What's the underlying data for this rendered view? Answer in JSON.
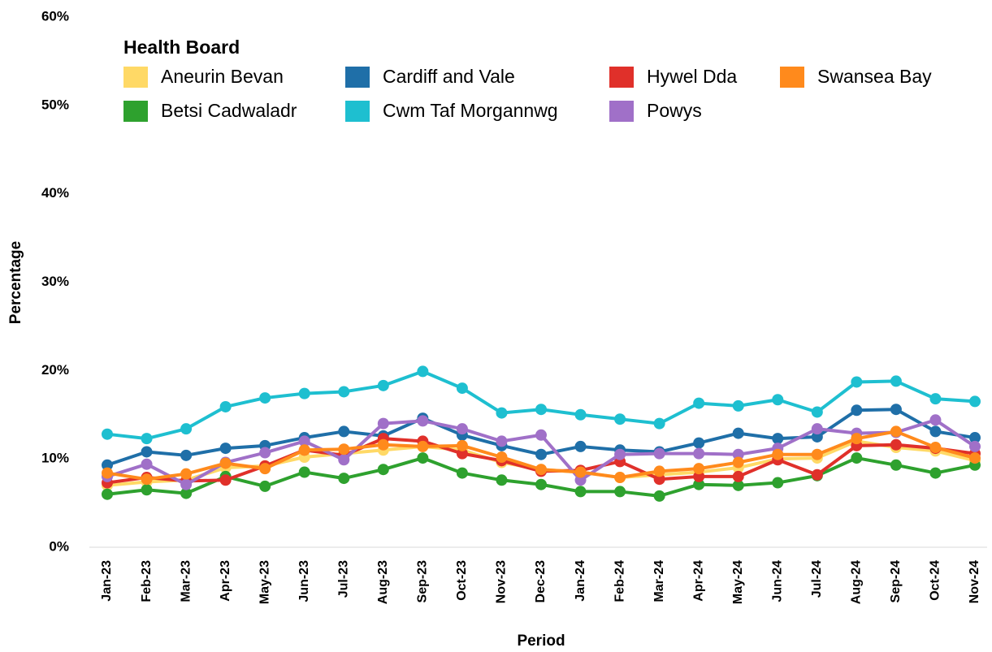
{
  "chart_data": {
    "type": "line",
    "x_label": "Period",
    "y_label": "Percentage",
    "legend_title": "Health Board",
    "legend": "top-left",
    "categories": [
      "Jan-23",
      "Feb-23",
      "Mar-23",
      "Apr-23",
      "May-23",
      "Jun-23",
      "Jul-23",
      "Aug-23",
      "Sep-23",
      "Oct-23",
      "Nov-23",
      "Dec-23",
      "Jan-24",
      "Feb-24",
      "Mar-24",
      "Apr-24",
      "May-24",
      "Jun-24",
      "Jul-24",
      "Aug-24",
      "Sep-24",
      "Oct-24",
      "Nov-24"
    ],
    "ylim": [
      0,
      60
    ],
    "yticks": [
      {
        "value": 0,
        "label": "0%"
      },
      {
        "value": 10,
        "label": "10%"
      },
      {
        "value": 20,
        "label": "20%"
      },
      {
        "value": 30,
        "label": "30%"
      },
      {
        "value": 40,
        "label": "40%"
      },
      {
        "value": 50,
        "label": "50%"
      },
      {
        "value": 60,
        "label": "60%"
      }
    ],
    "series": [
      {
        "name": "Aneurin Bevan",
        "color": "#ffd966",
        "values": [
          7.0,
          7.4,
          7.6,
          9.0,
          9.2,
          10.2,
          10.6,
          11.0,
          11.4,
          11.0,
          9.6,
          8.8,
          8.5,
          7.9,
          8.2,
          8.5,
          9.0,
          10.0,
          10.1,
          12.0,
          11.3,
          10.9,
          9.8
        ]
      },
      {
        "name": "Betsi Cadwaladr",
        "color": "#2ea12e",
        "values": [
          6.0,
          6.5,
          6.1,
          8.0,
          6.9,
          8.5,
          7.8,
          8.8,
          10.1,
          8.4,
          7.6,
          7.1,
          6.3,
          6.3,
          5.8,
          7.1,
          7.0,
          7.3,
          8.1,
          10.1,
          9.3,
          8.4,
          9.3
        ]
      },
      {
        "name": "Cardiff and Vale",
        "color": "#1f6fa8",
        "values": [
          9.3,
          10.8,
          10.4,
          11.2,
          11.5,
          12.4,
          13.1,
          12.6,
          14.6,
          12.7,
          11.5,
          10.5,
          11.4,
          11.0,
          10.8,
          11.8,
          12.9,
          12.3,
          12.5,
          15.5,
          15.6,
          13.1,
          12.4
        ]
      },
      {
        "name": "Cwm Taf Morgannwg",
        "color": "#1ebfd0",
        "values": [
          12.8,
          12.3,
          13.4,
          15.9,
          16.9,
          17.4,
          17.6,
          18.3,
          19.9,
          18.0,
          15.2,
          15.6,
          15.0,
          14.5,
          14.0,
          16.3,
          16.0,
          16.7,
          15.3,
          18.7,
          18.8,
          16.8,
          16.5
        ]
      },
      {
        "name": "Hywel Dda",
        "color": "#e0302a",
        "values": [
          7.3,
          7.9,
          7.5,
          7.6,
          9.2,
          11.0,
          10.4,
          12.3,
          12.0,
          10.6,
          9.8,
          8.6,
          8.7,
          9.7,
          7.7,
          8.0,
          8.0,
          9.9,
          8.2,
          11.5,
          11.6,
          11.2,
          10.6
        ]
      },
      {
        "name": "Powys",
        "color": "#a070c8",
        "values": [
          8.0,
          9.4,
          7.1,
          9.6,
          10.7,
          12.0,
          9.9,
          14.0,
          14.3,
          13.4,
          12.0,
          12.7,
          7.6,
          10.5,
          10.6,
          10.6,
          10.5,
          11.2,
          13.4,
          12.9,
          13.0,
          14.4,
          11.4
        ]
      },
      {
        "name": "Swansea Bay",
        "color": "#ff8a1c",
        "values": [
          8.4,
          7.7,
          8.3,
          9.5,
          8.9,
          11.0,
          11.1,
          11.6,
          11.4,
          11.5,
          10.2,
          8.8,
          8.5,
          7.9,
          8.6,
          8.9,
          9.6,
          10.5,
          10.5,
          12.3,
          13.1,
          11.3,
          10.1
        ]
      }
    ]
  }
}
